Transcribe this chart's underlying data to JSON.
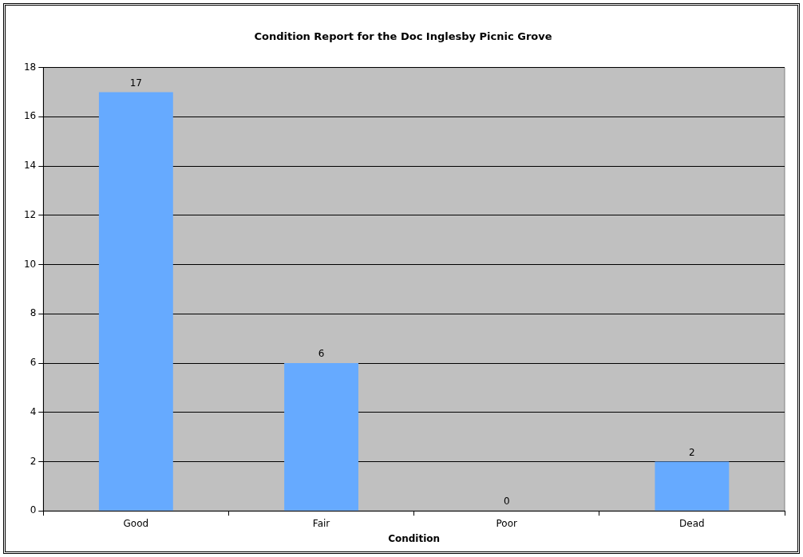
{
  "chart_data": {
    "type": "bar",
    "title": "Condition Report for the Doc Inglesby Picnic Grove",
    "xlabel": "Condition",
    "categories": [
      "Good",
      "Fair",
      "Poor",
      "Dead"
    ],
    "values": [
      17,
      6,
      0,
      2
    ],
    "color": "#66aaff",
    "ylim": [
      0,
      18
    ],
    "yticks": [
      0,
      2,
      4,
      6,
      8,
      10,
      12,
      14,
      16,
      18
    ],
    "grid": "y",
    "data_labels": true
  }
}
